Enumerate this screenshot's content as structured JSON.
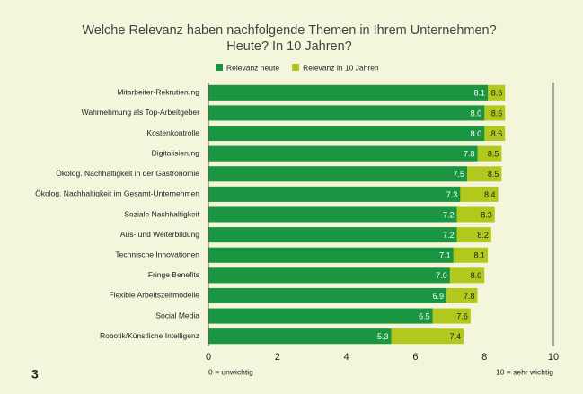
{
  "page_number": "3",
  "chart_data": {
    "type": "bar",
    "orientation": "horizontal",
    "overlap": true,
    "title": [
      "Welche Relevanz haben nachfolgende Themen in Ihrem Unternehmen?",
      "Heute? In 10 Jahren?"
    ],
    "categories": [
      "Mitarbeiter-Rekrutierung",
      "Wahrnehmung als Top-Arbeitgeber",
      "Kostenkontrolle",
      "Digitalisierung",
      "Ökolog. Nachhaltigkeit in der Gastronomie",
      "Ökolog. Nachhaltigkeit im Gesamt-Unternehmen",
      "Soziale Nachhaltigkeit",
      "Aus- und Weiterbildung",
      "Technische Innovationen",
      "Fringe Benefits",
      "Flexible Arbeitszeitmodelle",
      "Social Media",
      "Robotik/Künstliche Intelligenz"
    ],
    "series": [
      {
        "name": "Relevanz in 10 Jahren",
        "color": "#b3c81c",
        "values": [
          8.6,
          8.6,
          8.6,
          8.5,
          8.5,
          8.4,
          8.3,
          8.2,
          8.1,
          8.0,
          7.8,
          7.6,
          7.4
        ],
        "value_labels": [
          "8.6",
          "8.6",
          "8.6",
          "8.5",
          "8.5",
          "8.4",
          "8.3",
          "8.2",
          "8.1",
          "8.0",
          "7.8",
          "7.6",
          "7.4"
        ]
      },
      {
        "name": "Relevanz heute",
        "color": "#1a9541",
        "values": [
          8.1,
          8.0,
          8.0,
          7.8,
          7.5,
          7.3,
          7.2,
          7.2,
          7.1,
          7.0,
          6.9,
          6.5,
          5.3
        ],
        "value_labels": [
          "8.1",
          "8.0",
          "8.0",
          "7.8",
          "7.5",
          "7.3",
          "7.2",
          "7.2",
          "7.1",
          "7.0",
          "6.9",
          "6.5",
          "5.3"
        ]
      }
    ],
    "legend_order": [
      1,
      0
    ],
    "xlim": [
      0,
      10
    ],
    "xticks": [
      0,
      2,
      4,
      6,
      8,
      10
    ],
    "x_axis_notes": [
      "0 = unwichtig",
      "10 = sehr wichtig"
    ]
  }
}
